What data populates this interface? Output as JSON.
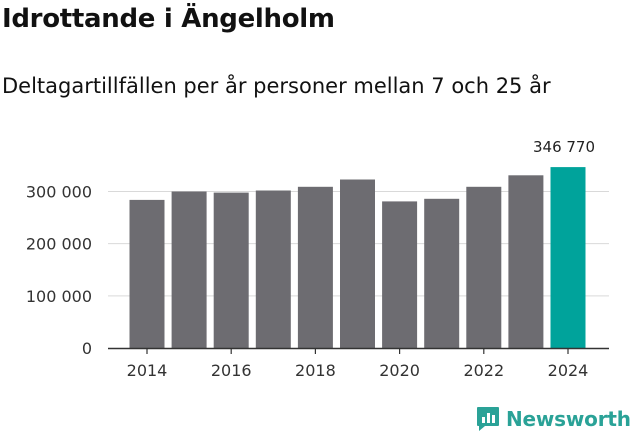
{
  "header": {
    "title": "Idrottande i Ängelholm",
    "subtitle": "Deltagartillfällen per år personer mellan 7 och 25 år"
  },
  "branding": {
    "logo_text": "Newsworthy",
    "logo_color": "#2aa297"
  },
  "chart_data": {
    "type": "bar",
    "title": "Idrottande i Ängelholm",
    "subtitle": "Deltagartillfällen per år personer mellan 7 och 25 år",
    "xlabel": "",
    "ylabel": "",
    "categories": [
      "2014",
      "2015",
      "2016",
      "2017",
      "2018",
      "2019",
      "2020",
      "2021",
      "2022",
      "2023",
      "2024"
    ],
    "values": [
      284000,
      300000,
      298000,
      302000,
      309000,
      323000,
      281000,
      286000,
      309000,
      331000,
      346770
    ],
    "ylim": [
      0,
      370000
    ],
    "yticks": [
      0,
      100000,
      200000,
      300000
    ],
    "ytick_labels": [
      "0",
      "100 000",
      "200 000",
      "300 000"
    ],
    "xticks": [
      "2014",
      "2016",
      "2018",
      "2020",
      "2022",
      "2024"
    ],
    "annotations": [
      {
        "category": "2024",
        "text": "346 770"
      }
    ],
    "highlight": {
      "category": "2024",
      "color": "#00a39b"
    },
    "bar_color": "#6d6c71",
    "grid": true
  }
}
